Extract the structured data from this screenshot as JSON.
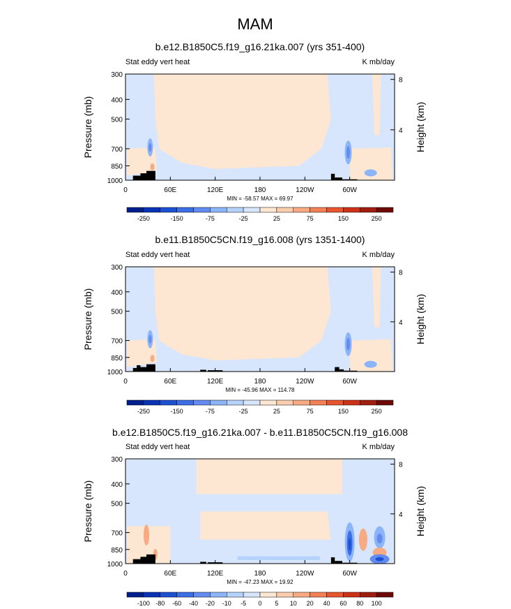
{
  "title": "MAM",
  "colors": {
    "land": "#000000",
    "frame": "#000000",
    "background": "#ffffff"
  },
  "chart_data": [
    {
      "type": "heatmap",
      "title": "b.e12.B1850C5.f19_g16.21ka.007 (yrs 351-400)",
      "left_label": "Stat eddy vert heat",
      "right_label": "K mb/day",
      "ylabel": "Pressure (mb)",
      "ylabel_right": "Height (km)",
      "yscale": "log",
      "ylim": [
        1000,
        300
      ],
      "yticks": [
        "300",
        "400",
        "500",
        "700",
        "850",
        "1000"
      ],
      "yticks_right": [
        "8",
        "4"
      ],
      "xlim": [
        0,
        360
      ],
      "xticks": [
        "0",
        "60E",
        "120E",
        "180",
        "120W",
        "60W"
      ],
      "stats": "MIN = -58.57   MAX =  69.97",
      "colorbar": {
        "labels": [
          "-250",
          "-150",
          "-75",
          "-25",
          "25",
          "75",
          "150",
          "250"
        ],
        "colors": [
          "#001e8c",
          "#0a32b4",
          "#1e50d2",
          "#3c6ee6",
          "#648cf0",
          "#8cb4f8",
          "#b4d2fa",
          "#d7e6fc",
          "#fde6d2",
          "#fbcdaf",
          "#f8aa82",
          "#f28255",
          "#e6552d",
          "#cd3219",
          "#a01e0f",
          "#6e0a05"
        ]
      },
      "land_blocks": [
        [
          10,
          20,
          950
        ],
        [
          20,
          28,
          925
        ],
        [
          28,
          40,
          900
        ],
        [
          275,
          280,
          930
        ],
        [
          280,
          290,
          970
        ],
        [
          290,
          310,
          990
        ]
      ]
    },
    {
      "type": "heatmap",
      "title": "b.e11.B1850C5CN.f19_g16.008 (yrs 1351-1400)",
      "left_label": "Stat eddy vert heat",
      "right_label": "K mb/day",
      "ylabel": "Pressure (mb)",
      "ylabel_right": "Height (km)",
      "yscale": "log",
      "ylim": [
        1000,
        300
      ],
      "yticks": [
        "300",
        "400",
        "500",
        "700",
        "850",
        "1000"
      ],
      "yticks_right": [
        "8",
        "4"
      ],
      "xlim": [
        0,
        360
      ],
      "xticks": [
        "0",
        "60E",
        "120E",
        "180",
        "120W",
        "60W"
      ],
      "stats": "MIN = -45.96   MAX = 114.78",
      "colorbar": {
        "labels": [
          "-250",
          "-150",
          "-75",
          "-25",
          "25",
          "75",
          "150",
          "250"
        ],
        "colors": [
          "#001e8c",
          "#0a32b4",
          "#1e50d2",
          "#3c6ee6",
          "#648cf0",
          "#8cb4f8",
          "#b4d2fa",
          "#d7e6fc",
          "#fde6d2",
          "#fbcdaf",
          "#f8aa82",
          "#f28255",
          "#e6552d",
          "#cd3219",
          "#a01e0f",
          "#6e0a05"
        ]
      },
      "land_blocks": [
        [
          10,
          15,
          960
        ],
        [
          15,
          20,
          930
        ],
        [
          20,
          28,
          950
        ],
        [
          28,
          40,
          920
        ],
        [
          100,
          108,
          980
        ],
        [
          110,
          130,
          985
        ],
        [
          280,
          286,
          950
        ],
        [
          286,
          292,
          975
        ],
        [
          292,
          310,
          990
        ]
      ]
    },
    {
      "type": "heatmap",
      "title": "b.e12.B1850C5.f19_g16.21ka.007 - b.e11.B1850C5CN.f19_g16.008",
      "left_label": "Stat eddy vert heat",
      "right_label": "K mb/day",
      "ylabel": "Pressure (mb)",
      "ylabel_right": "Height (km)",
      "yscale": "log",
      "ylim": [
        1000,
        300
      ],
      "yticks": [
        "300",
        "400",
        "500",
        "700",
        "850",
        "1000"
      ],
      "yticks_right": [
        "8",
        "4"
      ],
      "xlim": [
        0,
        360
      ],
      "xticks": [
        "0",
        "60E",
        "120E",
        "180",
        "120W",
        "60W"
      ],
      "stats": "MIN = -47.23   MAX =  19.92",
      "colorbar": {
        "labels": [
          "-100",
          "-80",
          "-60",
          "-40",
          "-20",
          "-10",
          "-5",
          "0",
          "5",
          "10",
          "20",
          "40",
          "60",
          "80",
          "100"
        ],
        "colors": [
          "#001e8c",
          "#0a32b4",
          "#1e50d2",
          "#3c6ee6",
          "#648cf0",
          "#8cb4f8",
          "#b4d2fa",
          "#d7e6fc",
          "#fde6d2",
          "#fbcdaf",
          "#f8aa82",
          "#f28255",
          "#e6552d",
          "#cd3219",
          "#a01e0f",
          "#6e0a05"
        ]
      },
      "land_blocks": [
        [
          10,
          20,
          950
        ],
        [
          20,
          28,
          925
        ],
        [
          28,
          40,
          900
        ],
        [
          100,
          108,
          980
        ],
        [
          110,
          130,
          985
        ],
        [
          275,
          280,
          930
        ],
        [
          280,
          290,
          970
        ],
        [
          290,
          310,
          990
        ]
      ]
    }
  ]
}
